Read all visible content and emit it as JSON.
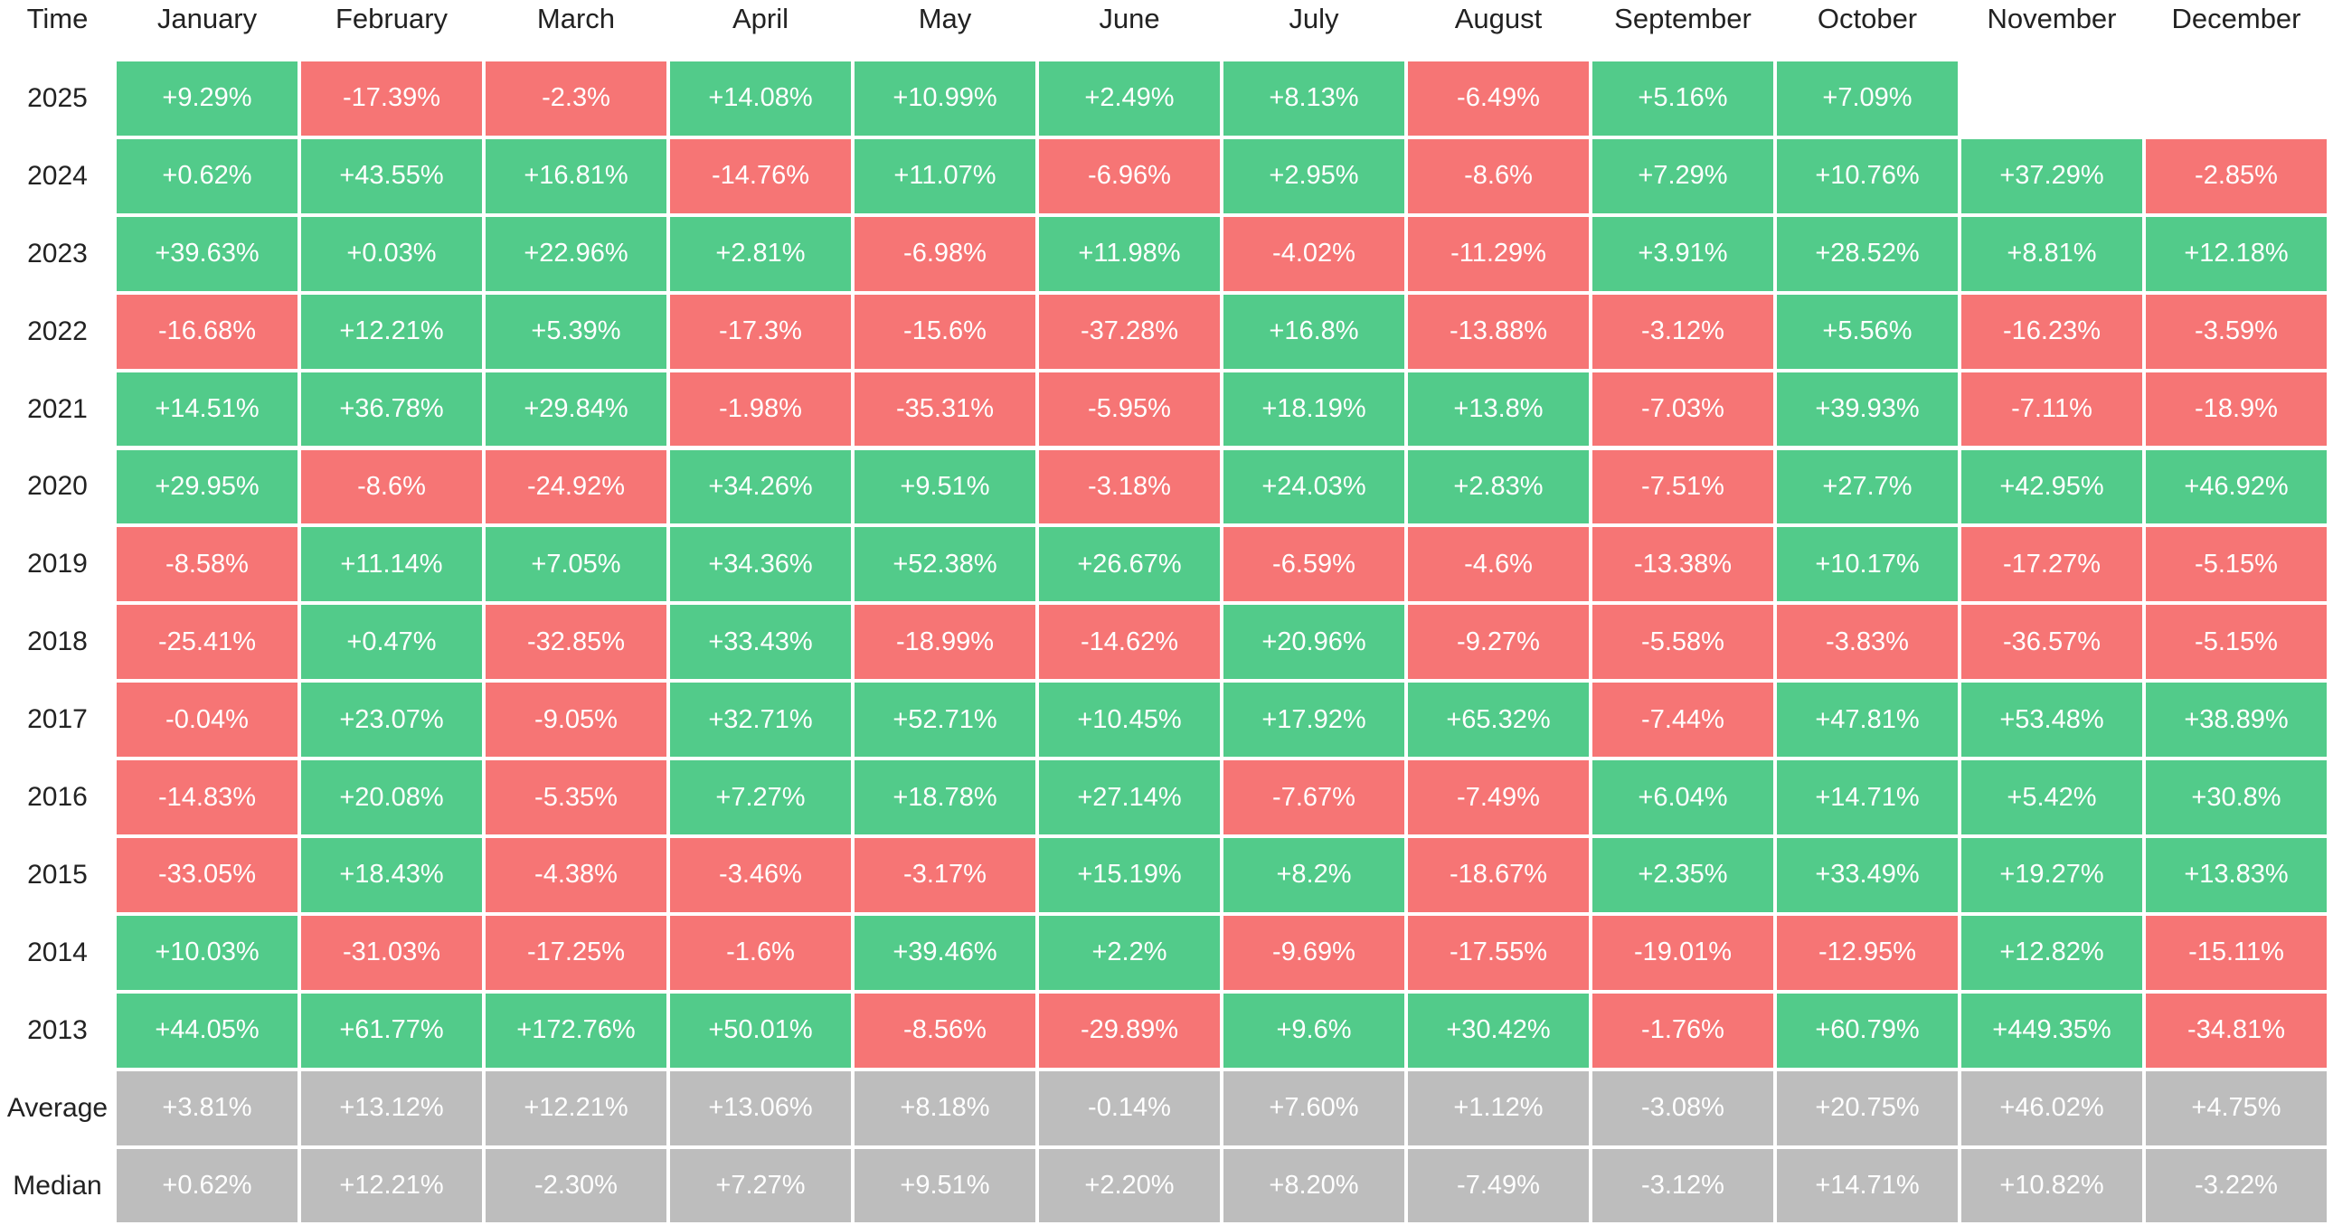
{
  "table": {
    "colors": {
      "up": "#52cb8a",
      "down": "#f67575",
      "summary": "#bdbdbd"
    },
    "header": [
      "Time",
      "January",
      "February",
      "March",
      "April",
      "May",
      "June",
      "July",
      "August",
      "September",
      "October",
      "November",
      "December"
    ],
    "rows": [
      {
        "label": "2025",
        "cells": [
          "+9.29%",
          "-17.39%",
          "-2.3%",
          "+14.08%",
          "+10.99%",
          "+2.49%",
          "+8.13%",
          "-6.49%",
          "+5.16%",
          "+7.09%"
        ]
      },
      {
        "label": "2024",
        "cells": [
          "+0.62%",
          "+43.55%",
          "+16.81%",
          "-14.76%",
          "+11.07%",
          "-6.96%",
          "+2.95%",
          "-8.6%",
          "+7.29%",
          "+10.76%",
          "+37.29%",
          "-2.85%"
        ]
      },
      {
        "label": "2023",
        "cells": [
          "+39.63%",
          "+0.03%",
          "+22.96%",
          "+2.81%",
          "-6.98%",
          "+11.98%",
          "-4.02%",
          "-11.29%",
          "+3.91%",
          "+28.52%",
          "+8.81%",
          "+12.18%"
        ]
      },
      {
        "label": "2022",
        "cells": [
          "-16.68%",
          "+12.21%",
          "+5.39%",
          "-17.3%",
          "-15.6%",
          "-37.28%",
          "+16.8%",
          "-13.88%",
          "-3.12%",
          "+5.56%",
          "-16.23%",
          "-3.59%"
        ]
      },
      {
        "label": "2021",
        "cells": [
          "+14.51%",
          "+36.78%",
          "+29.84%",
          "-1.98%",
          "-35.31%",
          "-5.95%",
          "+18.19%",
          "+13.8%",
          "-7.03%",
          "+39.93%",
          "-7.11%",
          "-18.9%"
        ]
      },
      {
        "label": "2020",
        "cells": [
          "+29.95%",
          "-8.6%",
          "-24.92%",
          "+34.26%",
          "+9.51%",
          "-3.18%",
          "+24.03%",
          "+2.83%",
          "-7.51%",
          "+27.7%",
          "+42.95%",
          "+46.92%"
        ]
      },
      {
        "label": "2019",
        "cells": [
          "-8.58%",
          "+11.14%",
          "+7.05%",
          "+34.36%",
          "+52.38%",
          "+26.67%",
          "-6.59%",
          "-4.6%",
          "-13.38%",
          "+10.17%",
          "-17.27%",
          "-5.15%"
        ]
      },
      {
        "label": "2018",
        "cells": [
          "-25.41%",
          "+0.47%",
          "-32.85%",
          "+33.43%",
          "-18.99%",
          "-14.62%",
          "+20.96%",
          "-9.27%",
          "-5.58%",
          "-3.83%",
          "-36.57%",
          "-5.15%"
        ]
      },
      {
        "label": "2017",
        "cells": [
          "-0.04%",
          "+23.07%",
          "-9.05%",
          "+32.71%",
          "+52.71%",
          "+10.45%",
          "+17.92%",
          "+65.32%",
          "-7.44%",
          "+47.81%",
          "+53.48%",
          "+38.89%"
        ]
      },
      {
        "label": "2016",
        "cells": [
          "-14.83%",
          "+20.08%",
          "-5.35%",
          "+7.27%",
          "+18.78%",
          "+27.14%",
          "-7.67%",
          "-7.49%",
          "+6.04%",
          "+14.71%",
          "+5.42%",
          "+30.8%"
        ]
      },
      {
        "label": "2015",
        "cells": [
          "-33.05%",
          "+18.43%",
          "-4.38%",
          "-3.46%",
          "-3.17%",
          "+15.19%",
          "+8.2%",
          "-18.67%",
          "+2.35%",
          "+33.49%",
          "+19.27%",
          "+13.83%"
        ]
      },
      {
        "label": "2014",
        "cells": [
          "+10.03%",
          "-31.03%",
          "-17.25%",
          "-1.6%",
          "+39.46%",
          "+2.2%",
          "-9.69%",
          "-17.55%",
          "-19.01%",
          "-12.95%",
          "+12.82%",
          "-15.11%"
        ]
      },
      {
        "label": "2013",
        "cells": [
          "+44.05%",
          "+61.77%",
          "+172.76%",
          "+50.01%",
          "-8.56%",
          "-29.89%",
          "+9.6%",
          "+30.42%",
          "-1.76%",
          "+60.79%",
          "+449.35%",
          "-34.81%"
        ]
      }
    ],
    "summary": [
      {
        "label": "Average",
        "cells": [
          "+3.81%",
          "+13.12%",
          "+12.21%",
          "+13.06%",
          "+8.18%",
          "-0.14%",
          "+7.60%",
          "+1.12%",
          "-3.08%",
          "+20.75%",
          "+46.02%",
          "+4.75%"
        ]
      },
      {
        "label": "Median",
        "cells": [
          "+0.62%",
          "+12.21%",
          "-2.30%",
          "+7.27%",
          "+9.51%",
          "+2.20%",
          "+8.20%",
          "-7.49%",
          "-3.12%",
          "+14.71%",
          "+10.82%",
          "-3.22%"
        ]
      }
    ]
  }
}
